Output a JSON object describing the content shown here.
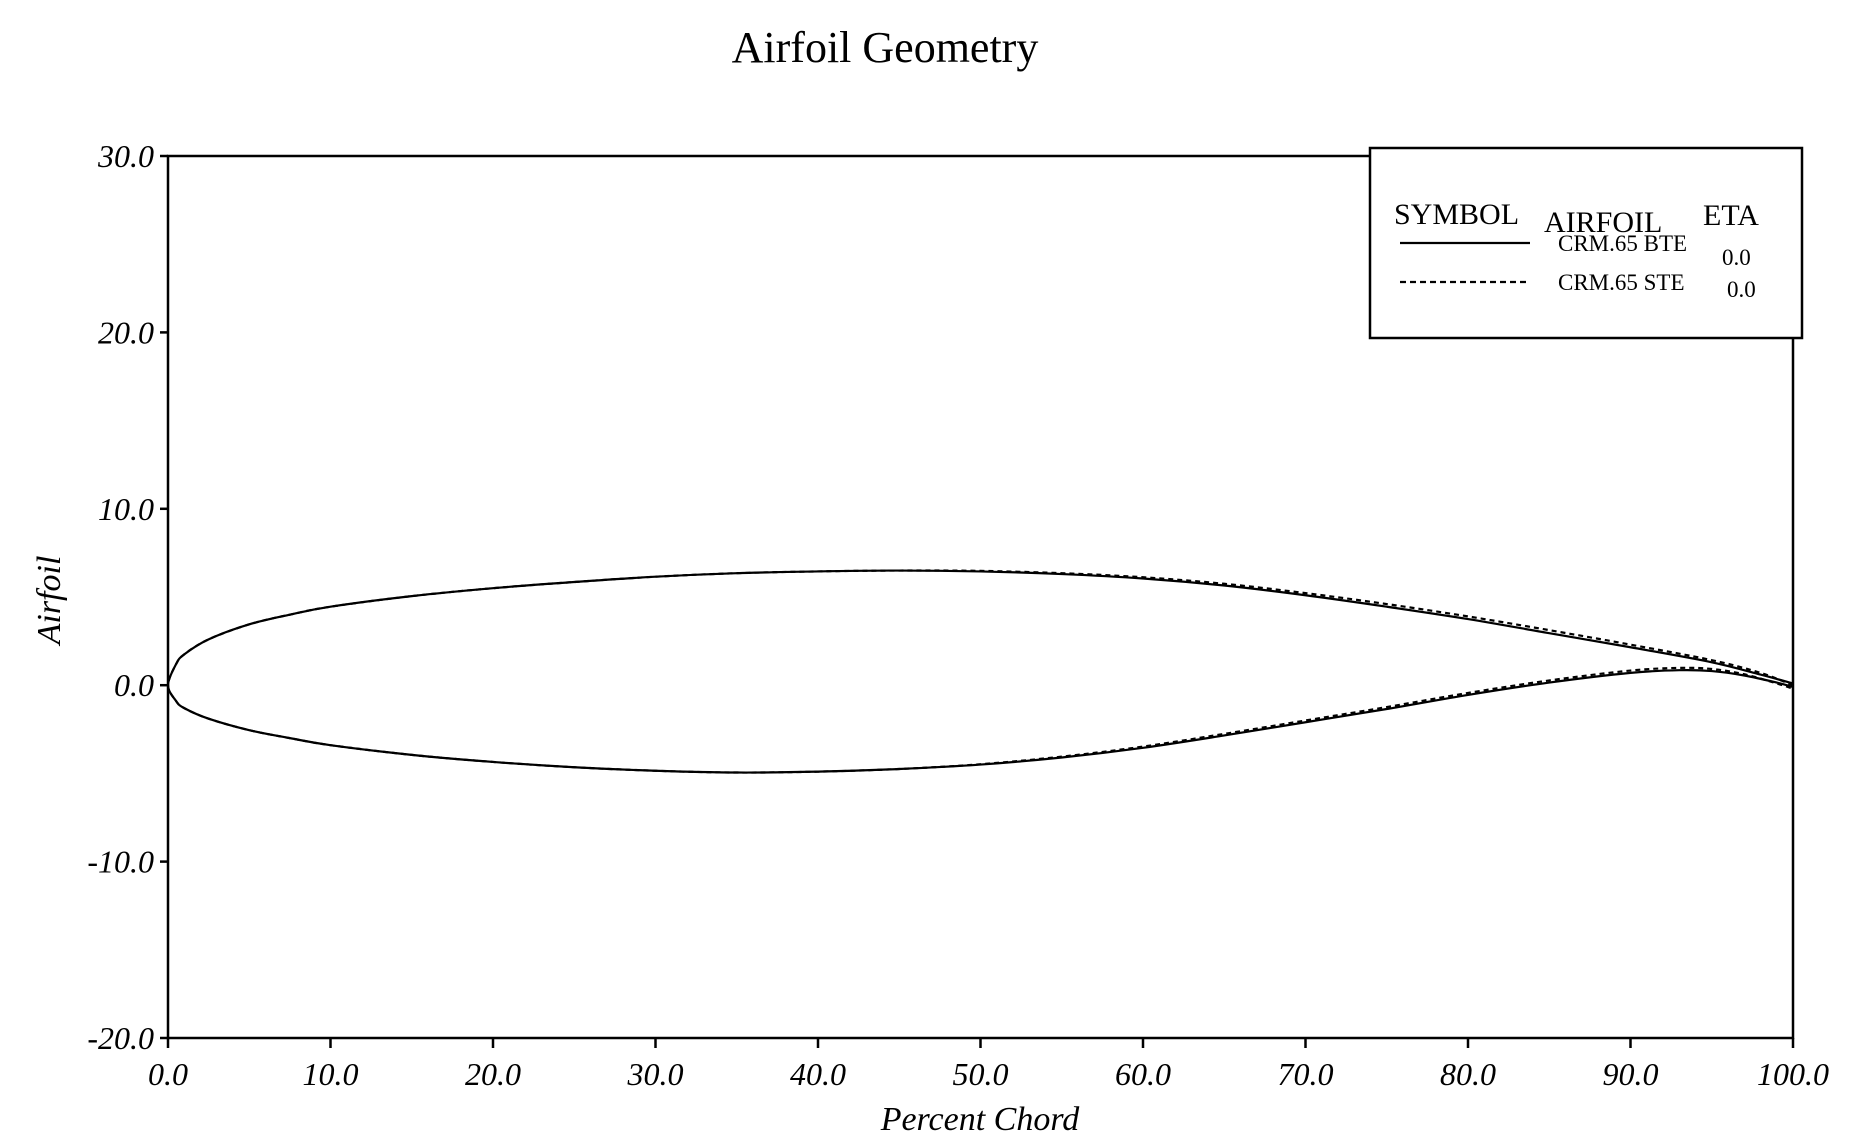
{
  "chart_data": {
    "type": "line",
    "title": "Airfoil Geometry",
    "xlabel": "Percent Chord",
    "ylabel": "Airfoil",
    "xlim": [
      0,
      100
    ],
    "ylim": [
      -20,
      30
    ],
    "x_ticks": [
      "0.0",
      "10.0",
      "20.0",
      "30.0",
      "40.0",
      "50.0",
      "60.0",
      "70.0",
      "80.0",
      "90.0",
      "100.0"
    ],
    "y_ticks": [
      "-20.0",
      "-10.0",
      "0.0",
      "10.0",
      "20.0",
      "30.0"
    ],
    "grid": false,
    "legend_position": "top-right",
    "legend": {
      "headers": {
        "symbol": "SYMBOL",
        "airfoil": "AIRFOIL",
        "eta": "ETA"
      }
    },
    "series": [
      {
        "name": "CRM.65 BTE",
        "eta": "0.0",
        "line_style": "solid",
        "color": "#000000",
        "upper": {
          "x": [
            0,
            0.5,
            1,
            2.5,
            5,
            7.5,
            10,
            15,
            20,
            25,
            30,
            35,
            40,
            45,
            50,
            55,
            60,
            65,
            70,
            75,
            80,
            85,
            90,
            95,
            98,
            100
          ],
          "y": [
            0,
            1.2,
            1.75,
            2.6,
            3.45,
            4.0,
            4.45,
            5.05,
            5.5,
            5.85,
            6.15,
            6.35,
            6.45,
            6.5,
            6.45,
            6.3,
            6.05,
            5.65,
            5.1,
            4.45,
            3.75,
            2.95,
            2.15,
            1.3,
            0.6,
            0.1
          ]
        },
        "lower": {
          "x": [
            0,
            0.5,
            1,
            2.5,
            5,
            7.5,
            10,
            15,
            20,
            25,
            30,
            35,
            40,
            45,
            50,
            55,
            60,
            65,
            70,
            75,
            80,
            85,
            90,
            93,
            95,
            97,
            99,
            100
          ],
          "y": [
            0,
            -0.9,
            -1.3,
            -1.9,
            -2.55,
            -3.0,
            -3.4,
            -3.95,
            -4.35,
            -4.65,
            -4.85,
            -4.95,
            -4.9,
            -4.75,
            -4.5,
            -4.1,
            -3.55,
            -2.85,
            -2.1,
            -1.35,
            -0.55,
            0.15,
            0.7,
            0.85,
            0.8,
            0.55,
            0.15,
            -0.1
          ]
        }
      },
      {
        "name": "CRM.65 STE",
        "eta": "0.0",
        "line_style": "dashed",
        "color": "#000000",
        "upper": {
          "x": [
            0,
            0.5,
            1,
            2.5,
            5,
            7.5,
            10,
            15,
            20,
            25,
            30,
            35,
            40,
            45,
            50,
            55,
            60,
            65,
            70,
            75,
            80,
            85,
            90,
            95,
            98,
            100
          ],
          "y": [
            0,
            1.2,
            1.75,
            2.6,
            3.45,
            4.0,
            4.45,
            5.05,
            5.5,
            5.85,
            6.15,
            6.35,
            6.45,
            6.5,
            6.48,
            6.35,
            6.12,
            5.75,
            5.22,
            4.6,
            3.9,
            3.12,
            2.3,
            1.42,
            0.7,
            0.0
          ]
        },
        "lower": {
          "x": [
            0,
            0.5,
            1,
            2.5,
            5,
            7.5,
            10,
            15,
            20,
            25,
            30,
            35,
            40,
            45,
            50,
            55,
            60,
            65,
            70,
            75,
            80,
            85,
            90,
            93,
            95,
            97,
            99,
            100
          ],
          "y": [
            0,
            -0.9,
            -1.3,
            -1.9,
            -2.55,
            -3.0,
            -3.4,
            -3.95,
            -4.35,
            -4.65,
            -4.85,
            -4.95,
            -4.9,
            -4.75,
            -4.48,
            -4.05,
            -3.48,
            -2.76,
            -2.0,
            -1.24,
            -0.44,
            0.27,
            0.83,
            0.98,
            0.92,
            0.62,
            0.1,
            -0.2
          ]
        }
      }
    ]
  }
}
